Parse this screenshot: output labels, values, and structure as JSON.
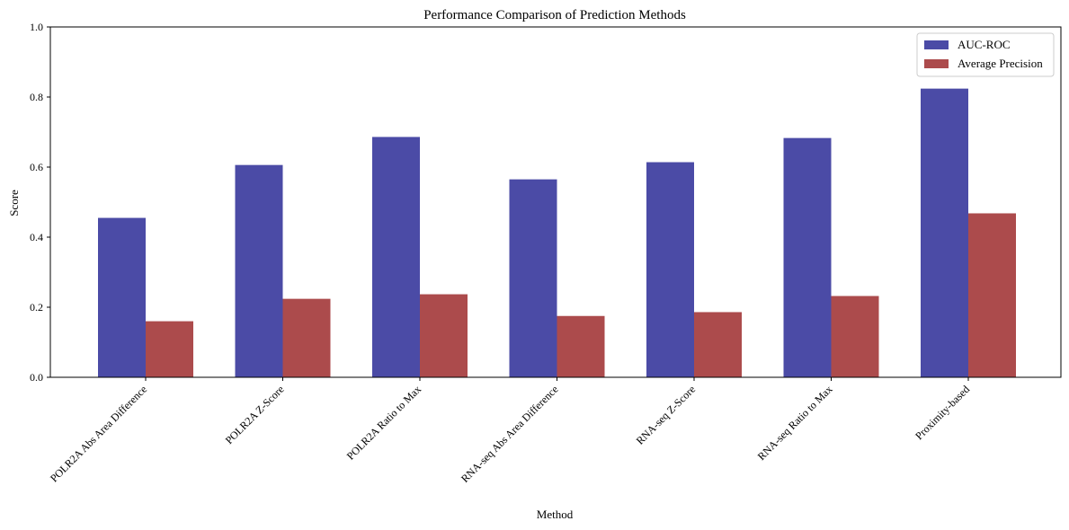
{
  "chart_data": {
    "type": "bar",
    "title": "Performance Comparison of Prediction Methods",
    "xlabel": "Method",
    "ylabel": "Score",
    "ylim": [
      0,
      1.0
    ],
    "yticks": [
      "0.0",
      "0.2",
      "0.4",
      "0.6",
      "0.8",
      "1.0"
    ],
    "categories": [
      "POLR2A Abs Area Difference",
      "POLR2A Z-Score",
      "POLR2A Ratio to Max",
      "RNA-seq Abs Area Difference",
      "RNA-seq Z-Score",
      "RNA-seq Ratio to Max",
      "Proximity-based"
    ],
    "series": [
      {
        "name": "AUC-ROC",
        "color": "#4b4ba6",
        "values": [
          0.455,
          0.606,
          0.686,
          0.565,
          0.614,
          0.683,
          0.824
        ]
      },
      {
        "name": "Average Precision",
        "color": "#ac4b4c",
        "values": [
          0.16,
          0.224,
          0.237,
          0.175,
          0.186,
          0.232,
          0.468
        ]
      }
    ],
    "legend_position": "top-right",
    "grid": false
  }
}
